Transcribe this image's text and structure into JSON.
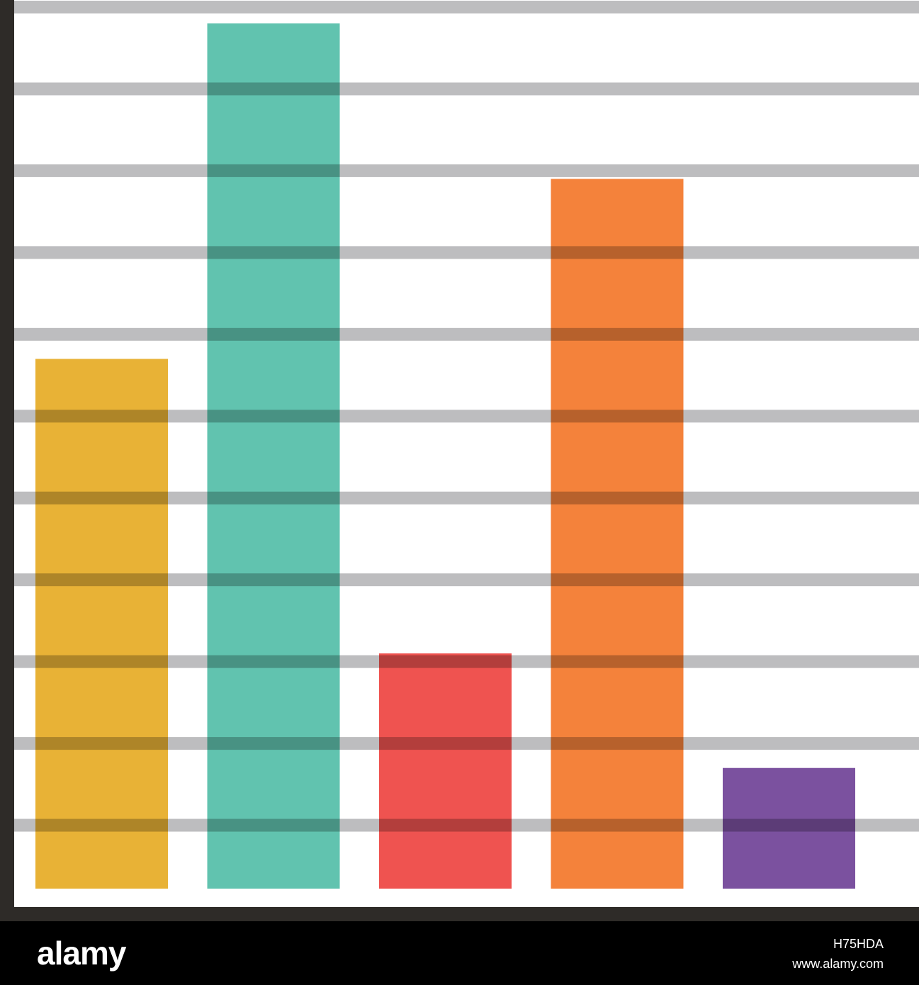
{
  "chart_data": {
    "type": "bar",
    "title": "",
    "xlabel": "",
    "ylabel": "",
    "categories": [
      "",
      "",
      "",
      "",
      ""
    ],
    "values": [
      6.7,
      10.8,
      3.1,
      8.9,
      1.7
    ],
    "colors": [
      "#E8B236",
      "#61C3AF",
      "#EF5350",
      "#F4823B",
      "#7B519F"
    ],
    "gridline_values": [
      1,
      2,
      3,
      4,
      5,
      6,
      7,
      8,
      9,
      10,
      11
    ],
    "ylim": [
      0,
      11
    ],
    "grid": true,
    "gridline_color": "#BDBDBF",
    "axis_color": "#2E2B28",
    "legend": "none"
  },
  "footer": {
    "brand": "alamy",
    "image_id": "H75HDA",
    "site_url": "www.alamy.com"
  }
}
